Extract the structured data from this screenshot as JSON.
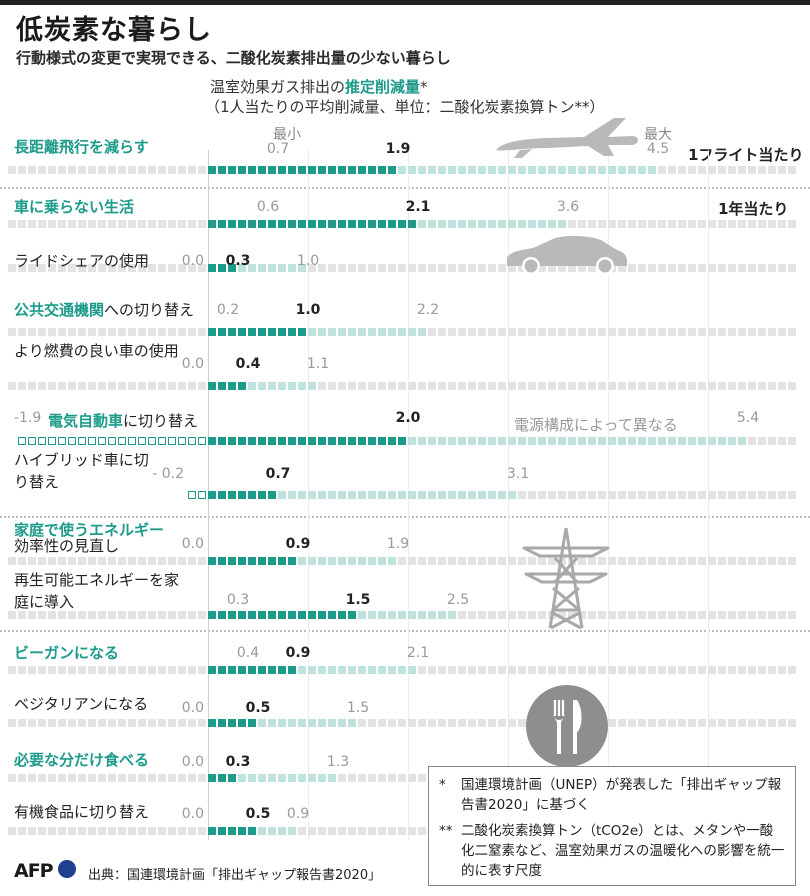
{
  "title": "低炭素な暮らし",
  "subtitle": "行動様式の変更で実現できる、二酸化炭素排出量の少ない暮らし",
  "header": {
    "line1_pre": "温室効果ガス排出の",
    "line1_highlight": "推定削減量",
    "line1_post": "*",
    "line2": "（1人当たりの平均削減量、単位：二酸化炭素換算トン**）",
    "min_label": "最小",
    "max_label": "最大"
  },
  "units": {
    "per_flight": "1フライト当たり",
    "per_year": "1年当たり"
  },
  "annotation_ev": "電源構成によって異なる",
  "chart_data": {
    "type": "range-bar",
    "unit": "二酸化炭素換算トン",
    "rows": [
      {
        "label_pre": "",
        "label_green": "長距離飛行を減らす",
        "label_post": "",
        "min": 0.7,
        "mid": 1.9,
        "max": 4.5
      },
      {
        "label_pre": "",
        "label_green": "車に乗らない生活",
        "label_post": "",
        "min": 0.6,
        "mid": 2.1,
        "max": 3.6
      },
      {
        "label_pre": "ライドシェアの使用",
        "label_green": "",
        "label_post": "",
        "min": 0.0,
        "mid": 0.3,
        "max": 1.0
      },
      {
        "label_pre": "",
        "label_green": "公共交通機関",
        "label_post": "への切り替え",
        "min": 0.2,
        "mid": 1.0,
        "max": 2.2
      },
      {
        "label_pre": "より燃費の良い車の使用",
        "label_green": "",
        "label_post": "",
        "min": 0.0,
        "mid": 0.4,
        "max": 1.1
      },
      {
        "label_pre": "",
        "label_green": "電気自動車",
        "label_post": "に切り替え",
        "min": -1.9,
        "mid": 2.0,
        "max": 5.4
      },
      {
        "label_pre": "ハイブリッド車に切り替え",
        "label_green": "",
        "label_post": "",
        "min": -0.2,
        "mid": 0.7,
        "max": 3.1
      },
      {
        "label_pre": "",
        "label_green": "家庭で使うエネルギー",
        "label_post": "",
        "sub": "効率性の見直し",
        "min": 0.0,
        "mid": 0.9,
        "max": 1.9
      },
      {
        "label_pre": "再生可能エネルギーを家庭に導入",
        "label_green": "",
        "label_post": "",
        "min": 0.3,
        "mid": 1.5,
        "max": 2.5
      },
      {
        "label_pre": "",
        "label_green": "ビーガンになる",
        "label_post": "",
        "min": 0.4,
        "mid": 0.9,
        "max": 2.1
      },
      {
        "label_pre": "ベジタリアンになる",
        "label_green": "",
        "label_post": "",
        "min": 0.0,
        "mid": 0.5,
        "max": 1.5
      },
      {
        "label_pre": "",
        "label_green": "必要な分だけ食べる",
        "label_post": "",
        "min": 0.0,
        "mid": 0.3,
        "max": 1.3
      },
      {
        "label_pre": "有機食品に切り替え",
        "label_green": "",
        "label_post": "",
        "min": 0.0,
        "mid": 0.5,
        "max": 0.9
      }
    ],
    "min_labels": [
      "0.7",
      "0.6",
      "0.0",
      "0.2",
      "0.0",
      "-1.9",
      "- 0.2",
      "0.0",
      "0.3",
      "0.4",
      "0.0",
      "0.0",
      "0.0"
    ],
    "mid_labels": [
      "1.9",
      "2.1",
      "0.3",
      "1.0",
      "0.4",
      "2.0",
      "0.7",
      "0.9",
      "1.5",
      "0.9",
      "0.5",
      "0.3",
      "0.5"
    ],
    "max_labels": [
      "4.5",
      "3.6",
      "1.0",
      "2.2",
      "1.1",
      "5.4",
      "3.1",
      "1.9",
      "2.5",
      "2.1",
      "1.5",
      "1.3",
      "0.9"
    ]
  },
  "notes": {
    "note1_mark": "*",
    "note1": "国連環境計画（UNEP）が発表した「排出ギャップ報告書2020」に基づく",
    "note2_mark": "**",
    "note2": "二酸化炭素換算トン（tCO2e）とは、メタンや一酸化二窒素など、温室効果ガスの温暖化への影響を統一的に表す尺度"
  },
  "source": "出典：国連環境計画「排出ギャップ報告書2020」",
  "logo": "AFP",
  "colors": {
    "accent": "#1c9b8a",
    "light": "#bfe3dc",
    "grey": "#e3e3e3"
  }
}
